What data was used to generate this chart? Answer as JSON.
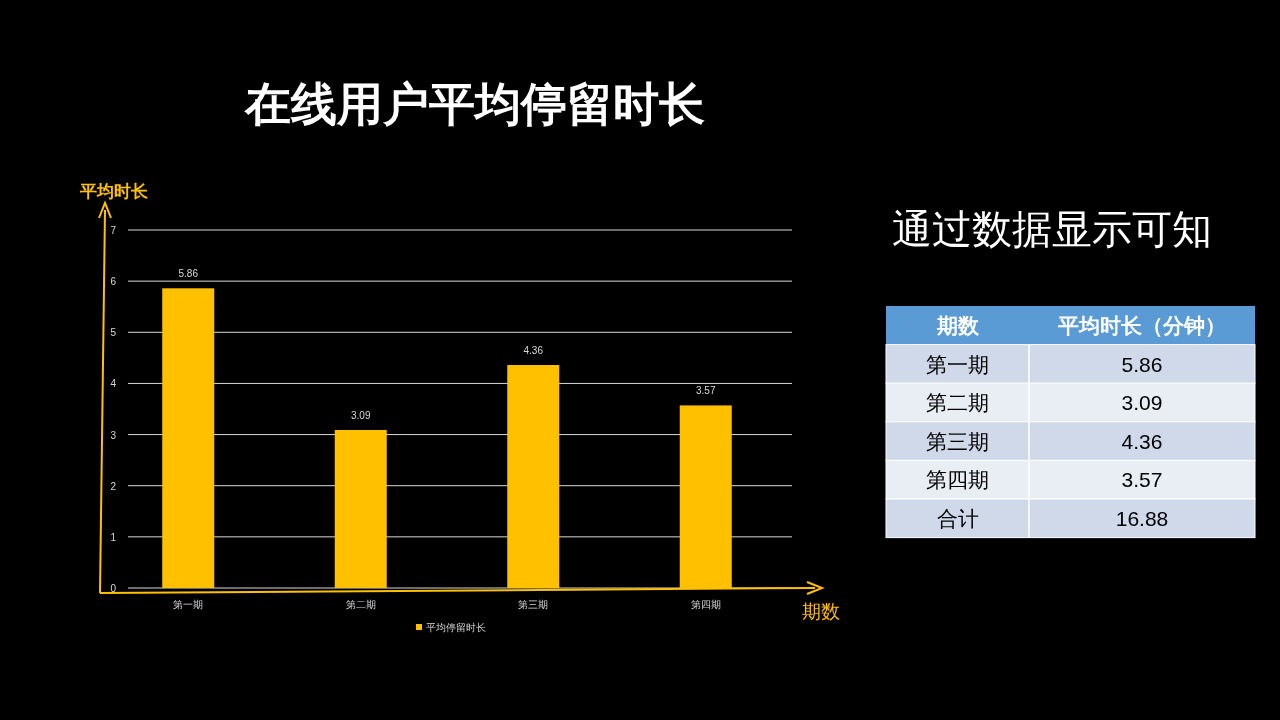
{
  "chart_data": [
    {
      "type": "bar",
      "title": "在线用户平均停留时长",
      "xlabel": "期数",
      "ylabel": "平均时长",
      "categories": [
        "第一期",
        "第二期",
        "第三期",
        "第四期"
      ],
      "series": [
        {
          "name": "平均停留时长",
          "color": "#ffc000",
          "values": [
            5.86,
            3.09,
            4.36,
            3.57
          ]
        }
      ],
      "ylim": [
        0,
        7
      ],
      "yticks": [
        0,
        1,
        2,
        3,
        4,
        5,
        6,
        7
      ],
      "grid": "y",
      "legend": "bottom",
      "data_labels": true
    },
    {
      "type": "other",
      "title": "通过数据显示可知",
      "annotations": [
        "期数",
        "平均时长（分钟）"
      ],
      "categories": [
        "第一期",
        "第二期",
        "第三期",
        "第四期",
        "合计"
      ],
      "values": [
        5.86,
        3.09,
        4.36,
        3.57,
        16.88
      ],
      "data_labels": true
    }
  ]
}
